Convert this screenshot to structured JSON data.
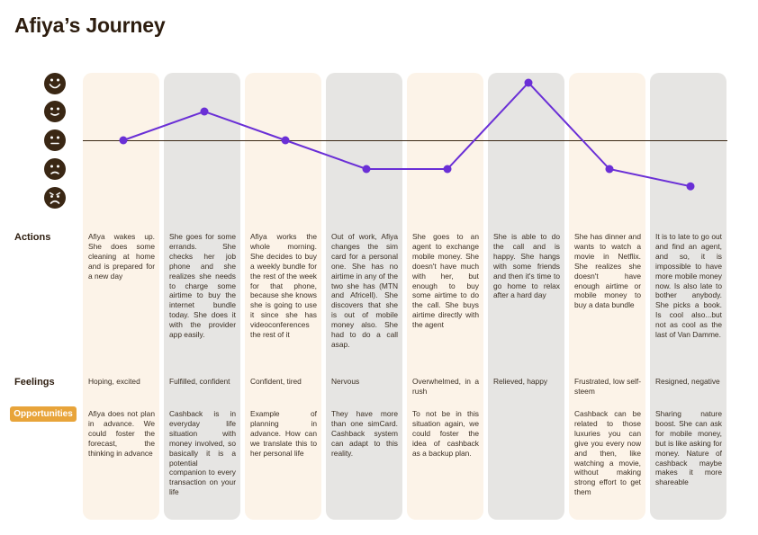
{
  "title": "Afiya’s Journey",
  "row_labels": {
    "actions": "Actions",
    "feelings": "Feelings",
    "opportunities": "Opportunities"
  },
  "emotion_scale": [
    "very-happy-face-icon",
    "happy-face-icon",
    "neutral-face-icon",
    "sad-face-icon",
    "very-sad-face-icon"
  ],
  "colors": {
    "line": "#6a2fd6",
    "cream": "#fcf3e8",
    "grey": "#e6e5e3",
    "badge": "#e8a43a",
    "face": "#3a2714"
  },
  "stages": [
    {
      "level": 3,
      "shade": "cream",
      "action": "Afiya wakes up. She does some cleaning at home and is prepared for a new day",
      "feeling": "Hoping, excited",
      "opportunity": "Afiya does not plan in advance. We could foster the forecast, the thinking in advance"
    },
    {
      "level": 4,
      "shade": "grey",
      "action": "She goes for some errands. She checks her job phone and she realizes she needs to charge some airtime to buy the internet bundle today. She does it with the provider app easily.",
      "feeling": "Fulfilled, confident",
      "opportunity": "Cashback is in everyday life situation with money involved, so basically it is a potential companion to every transaction on your life"
    },
    {
      "level": 3,
      "shade": "cream",
      "action": "Afiya works the whole morning. She decides to buy a weekly bundle for the rest of the week for that phone, because she knows she is going to use it since she has videoconferences the rest of it",
      "feeling": "Confident, tired",
      "opportunity": "Example of planning in advance. How can we translate this to her personal life"
    },
    {
      "level": 2,
      "shade": "grey",
      "action": "Out of work, Afiya changes the sim card for a personal one. She has no airtime in any of the two she has (MTN and Africell). She discovers that she is out of mobile money also. She had to do a call asap.",
      "feeling": "Nervous",
      "opportunity": "They have more than one simCard. Cashback system can adapt to this reality."
    },
    {
      "level": 2,
      "shade": "cream",
      "action": "She goes to an agent to exchange mobile money. She doesn't have much with her, but enough to buy some airtime to do the call. She buys airtime directly with the agent",
      "feeling": "Overwhelmed, in a rush",
      "opportunity": "To not be in this situation again, we could foster the idea of cashback as a backup plan."
    },
    {
      "level": 5,
      "shade": "grey",
      "action": "She is able to do the call and is happy. She hangs with some friends and then it's time to go home to relax after a hard day",
      "feeling": "Relieved, happy",
      "opportunity": ""
    },
    {
      "level": 2,
      "shade": "cream",
      "action": "She has dinner and wants to watch a movie in Netflix. She realizes she doesn't have enough airtime or mobile money to buy a data bundle",
      "feeling": "Frustrated, low self-steem",
      "opportunity": "Cashback can be related to those luxuries you can give you every now and then, like watching a movie, without making strong effort to get them"
    },
    {
      "level": 1.4,
      "shade": "grey",
      "action": "It is to late to go out and find an agent, and so, it is impossible to have more mobile money now. Is also late to bother anybody. She picks a book. Is cool also...but not as cool as the last of Van Damme.",
      "feeling": "Resigned, negative",
      "opportunity": "Sharing nature boost. She can ask for mobile money, but is like asking for money. Nature of cashback maybe makes it more shareable"
    }
  ]
}
